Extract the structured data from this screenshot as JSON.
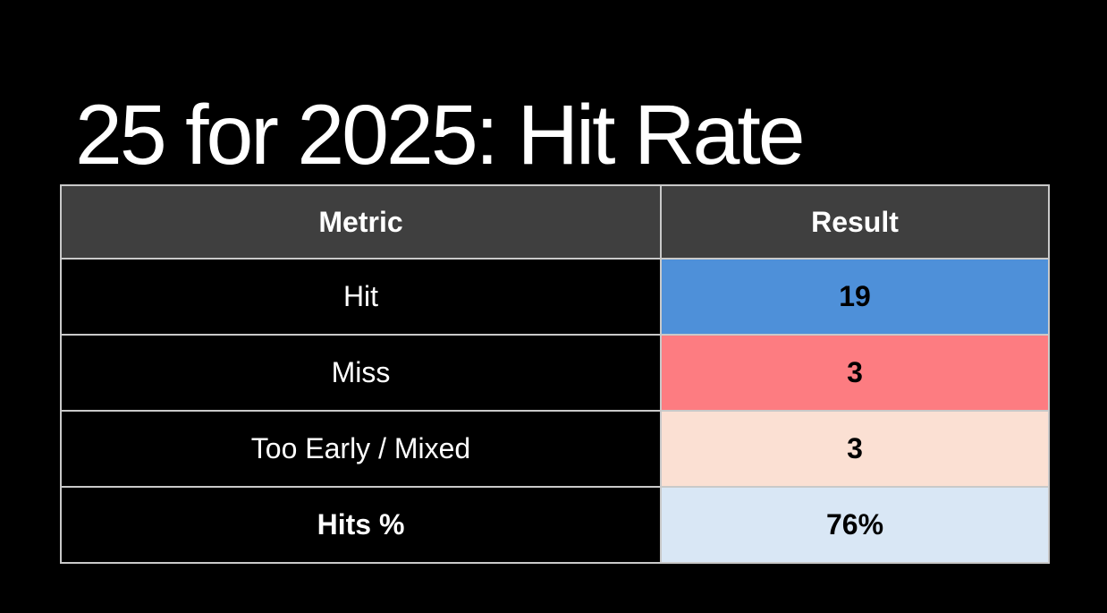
{
  "slide": {
    "title": "25 for 2025: Hit Rate"
  },
  "table": {
    "headers": [
      "Metric",
      "Result"
    ],
    "rows": [
      {
        "metric": "Hit",
        "result": "19",
        "result_bg": "#4E90D9"
      },
      {
        "metric": "Miss",
        "result": "3",
        "result_bg": "#FD7C81"
      },
      {
        "metric": "Too Early / Mixed",
        "result": "3",
        "result_bg": "#FBE0D3"
      },
      {
        "metric": "Hits %",
        "result": "76%",
        "result_bg": "#D9E7F5"
      }
    ]
  },
  "colors": {
    "background": "#000000",
    "header_bg": "#3F3F3F",
    "border": "#C9C9C9",
    "hit_blue": "#4E90D9",
    "miss_pink": "#FD7C81",
    "too_early_peach": "#FBE0D3",
    "hits_pct_light_blue": "#D9E7F5",
    "title_text": "#FFFFFF"
  }
}
